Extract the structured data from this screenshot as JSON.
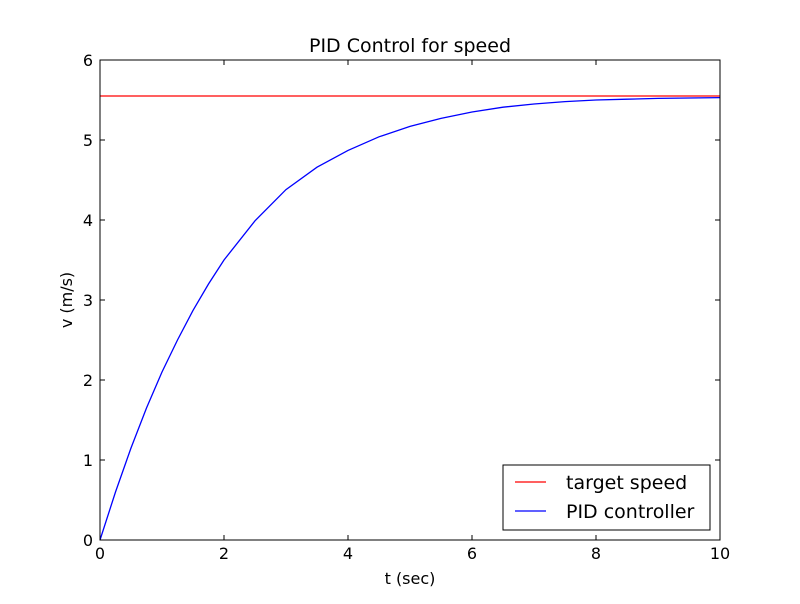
{
  "chart_data": {
    "type": "line",
    "title": "PID Control for speed",
    "xlabel": "t (sec)",
    "ylabel": "v (m/s)",
    "xlim": [
      0,
      10
    ],
    "ylim": [
      0,
      6
    ],
    "xticks": [
      0,
      2,
      4,
      6,
      8,
      10
    ],
    "yticks": [
      0,
      1,
      2,
      3,
      4,
      5,
      6
    ],
    "xtick_labels": [
      "0",
      "2",
      "4",
      "6",
      "8",
      "10"
    ],
    "ytick_labels": [
      "0",
      "1",
      "2",
      "3",
      "4",
      "5",
      "6"
    ],
    "grid": false,
    "legend_position": "bottom-right",
    "series": [
      {
        "name": "target speed",
        "color": "#ff0000",
        "x": [
          0,
          10
        ],
        "y": [
          5.55,
          5.55
        ]
      },
      {
        "name": "PID controller",
        "color": "#0000ff",
        "x": [
          0,
          0.25,
          0.5,
          0.75,
          1,
          1.25,
          1.5,
          1.75,
          2,
          2.5,
          3,
          3.5,
          4,
          4.5,
          5,
          5.5,
          6,
          6.5,
          7,
          7.5,
          8,
          8.5,
          9,
          9.5,
          10
        ],
        "y": [
          0,
          0.6,
          1.15,
          1.65,
          2.1,
          2.5,
          2.87,
          3.2,
          3.5,
          3.99,
          4.38,
          4.66,
          4.87,
          5.04,
          5.17,
          5.27,
          5.35,
          5.41,
          5.45,
          5.48,
          5.5,
          5.51,
          5.52,
          5.525,
          5.53
        ]
      }
    ]
  }
}
